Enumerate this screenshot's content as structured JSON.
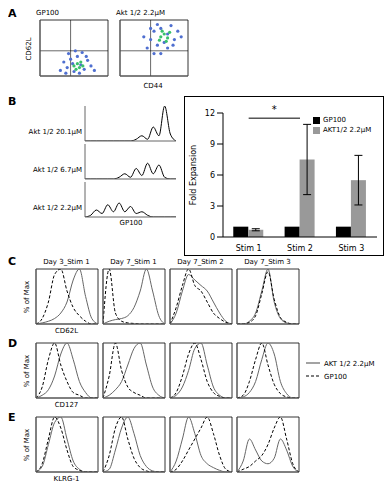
{
  "chart_data": [
    {
      "type": "scatter",
      "panel": "A",
      "title": "GP100",
      "y_label": "CD62L",
      "xlim": [
        0,
        100
      ],
      "ylim": [
        0,
        100
      ],
      "tick_labels": false,
      "gates": {
        "x": 45,
        "y": 45
      },
      "series": [
        {
          "color": "#4f6fd0",
          "x": [
            30,
            35,
            40,
            45,
            50,
            55,
            60,
            65,
            70,
            75,
            42,
            62,
            80,
            48,
            58,
            38,
            68,
            52
          ],
          "values": [
            10,
            25,
            15,
            30,
            8,
            35,
            20,
            12,
            28,
            18,
            40,
            42,
            10,
            22,
            5,
            5,
            35,
            45
          ]
        },
        {
          "color": "#39c26b",
          "x": [
            50,
            55,
            58,
            60,
            53,
            63
          ],
          "values": [
            18,
            22,
            15,
            25,
            12,
            18
          ]
        }
      ]
    },
    {
      "type": "scatter",
      "title": "Akt 1/2 2.2μM",
      "x_label": "CD44",
      "xlim": [
        0,
        100
      ],
      "ylim": [
        0,
        100
      ],
      "tick_labels": false,
      "gates": {
        "x": 45,
        "y": 45
      },
      "series": [
        {
          "color": "#4f6fd0",
          "x": [
            40,
            45,
            50,
            55,
            60,
            65,
            70,
            75,
            80,
            85,
            50,
            60,
            45,
            70,
            78,
            90,
            55,
            35
          ],
          "values": [
            50,
            65,
            80,
            55,
            85,
            60,
            75,
            90,
            65,
            80,
            40,
            40,
            85,
            50,
            55,
            70,
            92,
            70
          ]
        },
        {
          "color": "#39c26b",
          "x": [
            60,
            65,
            70,
            62,
            68,
            73,
            58
          ],
          "values": [
            70,
            75,
            68,
            80,
            62,
            78,
            64
          ]
        }
      ]
    },
    {
      "type": "line",
      "panel": "B",
      "x_label": "GP100",
      "xlim": [
        20,
        100
      ],
      "ylim": [
        0,
        20
      ],
      "tick_labels": false,
      "x": [
        20,
        25,
        30,
        35,
        40,
        45,
        50,
        55,
        60,
        65,
        70,
        75,
        80,
        85,
        90,
        95,
        100
      ],
      "series": [
        {
          "name": "Akt 1/2 20.1μM",
          "color": "#000000",
          "values": [
            0,
            0,
            0,
            0,
            0,
            0,
            0,
            0,
            0,
            1,
            3,
            1,
            8,
            3,
            20,
            4,
            0
          ]
        },
        {
          "name": "Akt 1/2 6.7μM",
          "color": "#000000",
          "values": [
            0,
            0,
            0,
            0,
            0,
            0,
            1,
            3,
            1,
            6,
            2,
            9,
            3,
            8,
            1,
            0,
            0
          ]
        },
        {
          "name": "Akt 1/2 2.2μM",
          "color": "#000000",
          "values": [
            0,
            1,
            4,
            2,
            7,
            3,
            8,
            3,
            6,
            2,
            3,
            1,
            0,
            0,
            0,
            0,
            0
          ]
        }
      ]
    },
    {
      "type": "bar",
      "y_label": "Fold Expansion",
      "categories": [
        "Stim 1",
        "Stim 2",
        "Stim 3"
      ],
      "ylim": [
        0,
        12
      ],
      "yticks": [
        0,
        3,
        6,
        9,
        12
      ],
      "legend": "top right",
      "series": [
        {
          "name": "GP100",
          "color": "#000000",
          "values": [
            1,
            1,
            1
          ]
        },
        {
          "name": "AKT1/2 2.2μM",
          "color": "#999999",
          "values": [
            0.7,
            7.5,
            5.5
          ],
          "errors": [
            0.1,
            3.4,
            2.4
          ]
        }
      ],
      "annotations": [
        {
          "text": "*",
          "x1": "Stim 1",
          "x2": "Stim 2",
          "y": 11.5
        }
      ]
    },
    {
      "type": "line",
      "panel": "C",
      "titles": [
        "Day 3_Stim 1",
        "Day 7_Stim 1",
        "Day 7_Stim 2",
        "Day 7_Stim 3"
      ],
      "x_label": "CD62L",
      "y_label": "% of Max",
      "xlim": [
        0,
        100
      ],
      "ylim": [
        0,
        100
      ],
      "tick_labels": false,
      "x": [
        0,
        10,
        20,
        30,
        40,
        50,
        60,
        70,
        80,
        90,
        100
      ],
      "series": [
        {
          "color": "#666666",
          "line_style": "solid",
          "values": [
            [
              0,
              2,
              5,
              10,
              20,
              40,
              80,
              100,
              50,
              10,
              0
            ],
            [
              0,
              5,
              8,
              10,
              15,
              30,
              60,
              100,
              60,
              15,
              0
            ],
            [
              0,
              20,
              60,
              90,
              80,
              70,
              60,
              40,
              20,
              5,
              0
            ],
            [
              0,
              0,
              5,
              20,
              60,
              100,
              40,
              10,
              2,
              0,
              0
            ]
          ]
        },
        {
          "color": "#000000",
          "line_style": "dashed",
          "values": [
            [
              0,
              10,
              40,
              90,
              100,
              60,
              30,
              15,
              5,
              0,
              0
            ],
            [
              0,
              100,
              20,
              5,
              2,
              1,
              0,
              0,
              0,
              0,
              0
            ],
            [
              0,
              30,
              70,
              100,
              70,
              60,
              40,
              20,
              10,
              3,
              0
            ],
            [
              0,
              0,
              3,
              15,
              55,
              95,
              45,
              12,
              3,
              0,
              0
            ]
          ]
        }
      ]
    },
    {
      "type": "line",
      "panel": "D",
      "x_label": "CD127",
      "y_label": "% of Max",
      "xlim": [
        0,
        100
      ],
      "ylim": [
        0,
        100
      ],
      "tick_labels": false,
      "legend": "right",
      "x": [
        0,
        10,
        20,
        30,
        40,
        50,
        60,
        70,
        80,
        90,
        100
      ],
      "series": [
        {
          "name": "AKT 1/2 2.2μM",
          "color": "#666666",
          "line_style": "solid",
          "values": [
            [
              0,
              5,
              15,
              40,
              80,
              100,
              70,
              30,
              10,
              0,
              0
            ],
            [
              0,
              5,
              15,
              30,
              60,
              90,
              100,
              60,
              20,
              5,
              0
            ],
            [
              0,
              5,
              20,
              50,
              90,
              100,
              60,
              20,
              5,
              0,
              0
            ],
            [
              0,
              2,
              10,
              30,
              70,
              100,
              80,
              30,
              8,
              0,
              0
            ]
          ]
        },
        {
          "name": "GP100",
          "color": "#000000",
          "line_style": "dashed",
          "values": [
            [
              0,
              20,
              70,
              100,
              60,
              30,
              10,
              5,
              0,
              0,
              0
            ],
            [
              0,
              40,
              100,
              50,
              20,
              10,
              5,
              0,
              0,
              0,
              0
            ],
            [
              0,
              10,
              40,
              80,
              100,
              70,
              30,
              10,
              3,
              0,
              0
            ],
            [
              0,
              5,
              30,
              70,
              100,
              60,
              25,
              8,
              2,
              0,
              0
            ]
          ]
        }
      ]
    },
    {
      "type": "line",
      "panel": "E",
      "x_label": "KLRG-1",
      "y_label": "% of Max",
      "xlim": [
        0,
        100
      ],
      "ylim": [
        0,
        100
      ],
      "tick_labels": false,
      "x": [
        0,
        10,
        20,
        30,
        40,
        50,
        60,
        70,
        80,
        90,
        100
      ],
      "series": [
        {
          "color": "#666666",
          "line_style": "solid",
          "values": [
            [
              0,
              10,
              50,
              90,
              100,
              60,
              20,
              5,
              0,
              0,
              0
            ],
            [
              0,
              5,
              40,
              80,
              100,
              70,
              30,
              10,
              2,
              0,
              0
            ],
            [
              0,
              20,
              60,
              100,
              70,
              30,
              15,
              8,
              3,
              0,
              0
            ],
            [
              0,
              20,
              60,
              40,
              20,
              15,
              25,
              60,
              40,
              10,
              0
            ]
          ]
        },
        {
          "color": "#000000",
          "line_style": "dashed",
          "values": [
            [
              0,
              15,
              60,
              100,
              80,
              40,
              10,
              3,
              0,
              0,
              0
            ],
            [
              0,
              30,
              80,
              100,
              60,
              25,
              8,
              2,
              0,
              0,
              0
            ],
            [
              0,
              5,
              20,
              40,
              60,
              80,
              100,
              70,
              30,
              5,
              0
            ],
            [
              0,
              5,
              10,
              20,
              30,
              50,
              80,
              100,
              60,
              15,
              0
            ]
          ]
        }
      ]
    }
  ]
}
